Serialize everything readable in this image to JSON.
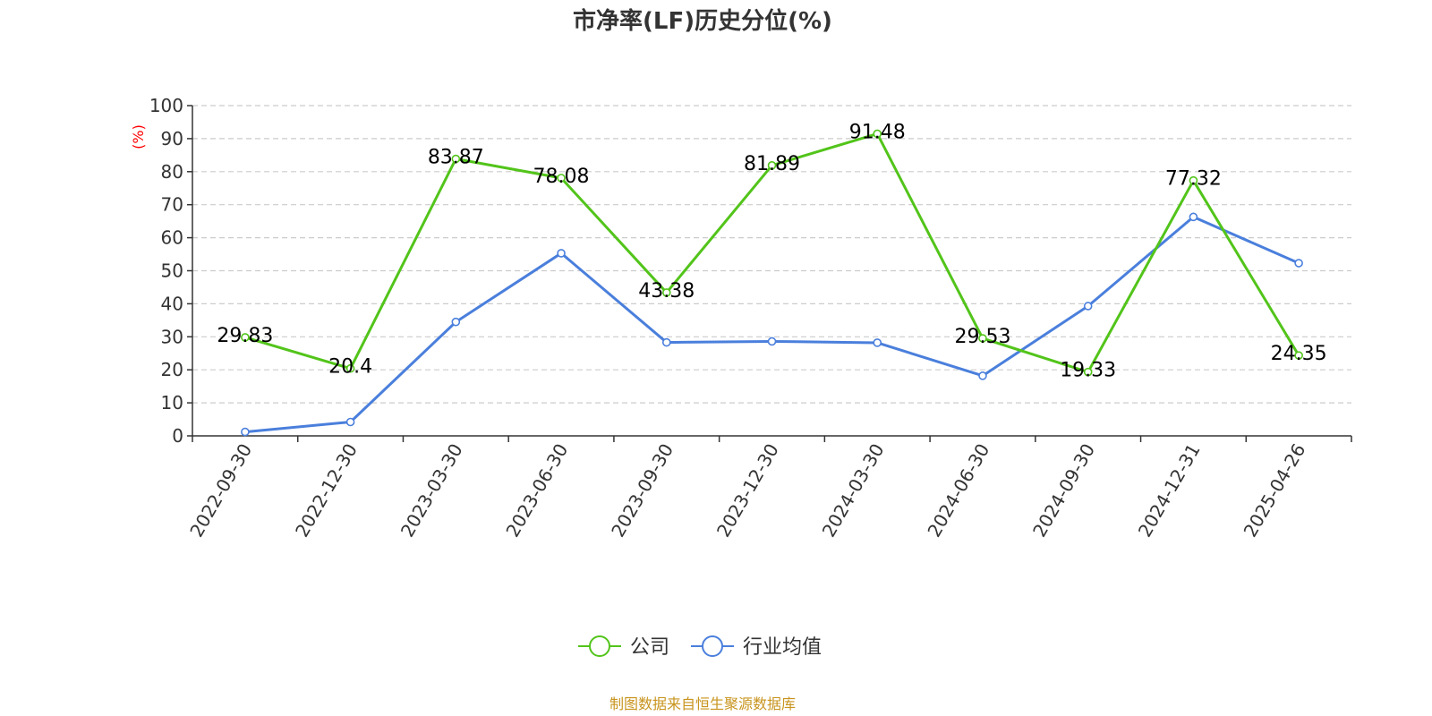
{
  "chart_data": {
    "type": "line",
    "title": "市净率(LF)历史分位(%)",
    "ylabel": "(%)",
    "xlabel": "",
    "categories": [
      "2022-09-30",
      "2022-12-30",
      "2023-03-30",
      "2023-06-30",
      "2023-09-30",
      "2023-12-30",
      "2024-03-30",
      "2024-06-30",
      "2024-09-30",
      "2024-12-31",
      "2025-04-26"
    ],
    "ylim": [
      0,
      100
    ],
    "yticks": [
      0,
      10,
      20,
      30,
      40,
      50,
      60,
      70,
      80,
      90,
      100
    ],
    "grid": true,
    "legend_position": "bottom-center",
    "series": [
      {
        "name": "公司",
        "color": "#52c41a",
        "values": [
          29.83,
          20.4,
          83.87,
          78.08,
          43.38,
          81.89,
          91.48,
          29.53,
          19.33,
          77.32,
          24.35
        ],
        "labels": [
          "29.83",
          "20.4",
          "83.87",
          "78.08",
          "43.38",
          "81.89",
          "91.48",
          "29.53",
          "19.33",
          "77.32",
          "24.35"
        ]
      },
      {
        "name": "行业均值",
        "color": "#4a7fdc",
        "values": [
          1.2,
          4.2,
          34.5,
          55.3,
          28.3,
          28.6,
          28.2,
          18.2,
          39.3,
          66.3,
          52.3
        ]
      }
    ]
  },
  "source_text": "制图数据来自恒生聚源数据库",
  "colors": {
    "axis_label": "#ff0000",
    "source": "#c8941e",
    "grid": "#cccccc",
    "axis": "#333333"
  }
}
